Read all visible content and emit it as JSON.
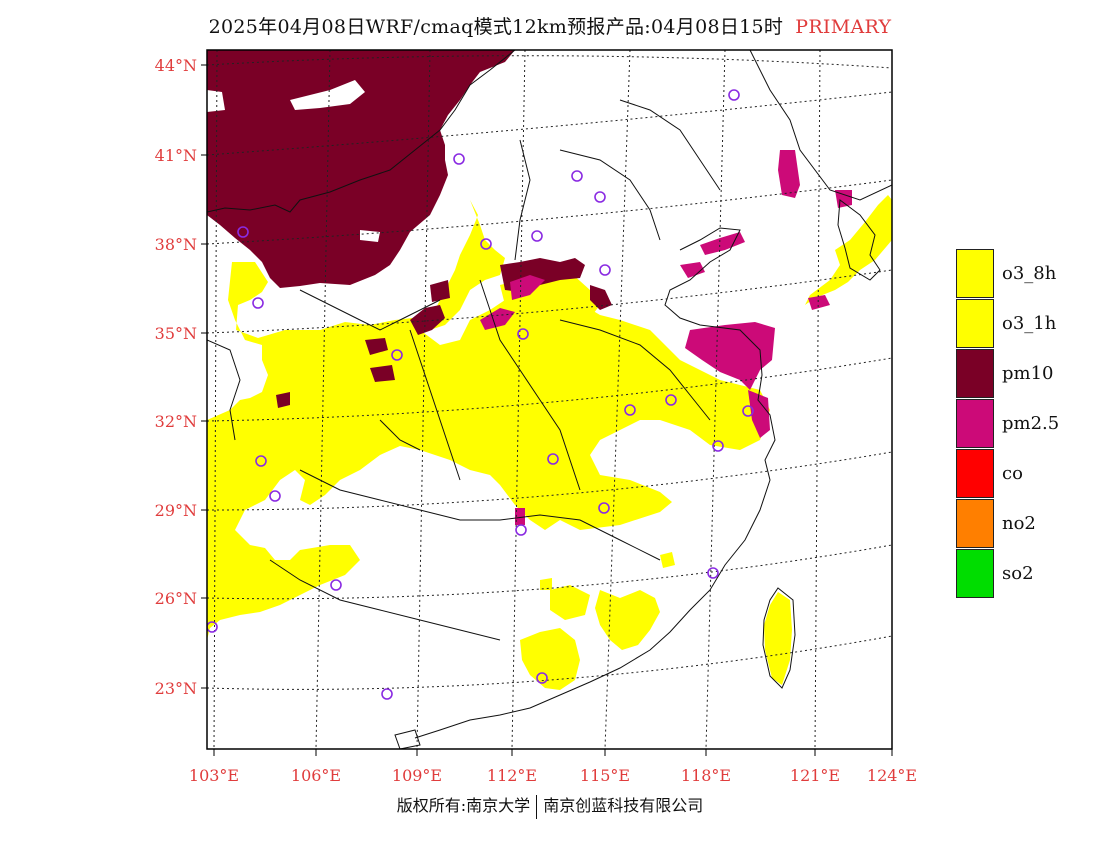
{
  "title": {
    "main": "2025年04月08日WRF/cmaq模式12km预报产品:04月08日15时",
    "tag": "PRIMARY"
  },
  "map": {
    "lon_ticks": [
      "103°E",
      "106°E",
      "109°E",
      "112°E",
      "115°E",
      "118°E",
      "121°E",
      "124°E"
    ],
    "lat_ticks": [
      "44°N",
      "41°N",
      "38°N",
      "35°N",
      "32°N",
      "29°N",
      "26°N",
      "23°N"
    ],
    "colors": {
      "o3_8h": "#ffff00",
      "o3_1h": "#ffff00",
      "pm10": "#7a0026",
      "pm2_5": "#cc0a78",
      "co": "#ff0000",
      "no2": "#ff7f00",
      "so2": "#00dd00",
      "station": "#8a2be2",
      "label": "#e03c3c"
    }
  },
  "legend": [
    {
      "label": "o3_8h",
      "color": "#ffff00"
    },
    {
      "label": "o3_1h",
      "color": "#ffff00"
    },
    {
      "label": "pm10",
      "color": "#7a0026"
    },
    {
      "label": "pm2.5",
      "color": "#cc0a78"
    },
    {
      "label": "co",
      "color": "#ff0000"
    },
    {
      "label": "no2",
      "color": "#ff7f00"
    },
    {
      "label": "so2",
      "color": "#00dd00"
    }
  ],
  "footer": {
    "left": "版权所有:南京大学",
    "right": "南京创蓝科技有限公司"
  }
}
